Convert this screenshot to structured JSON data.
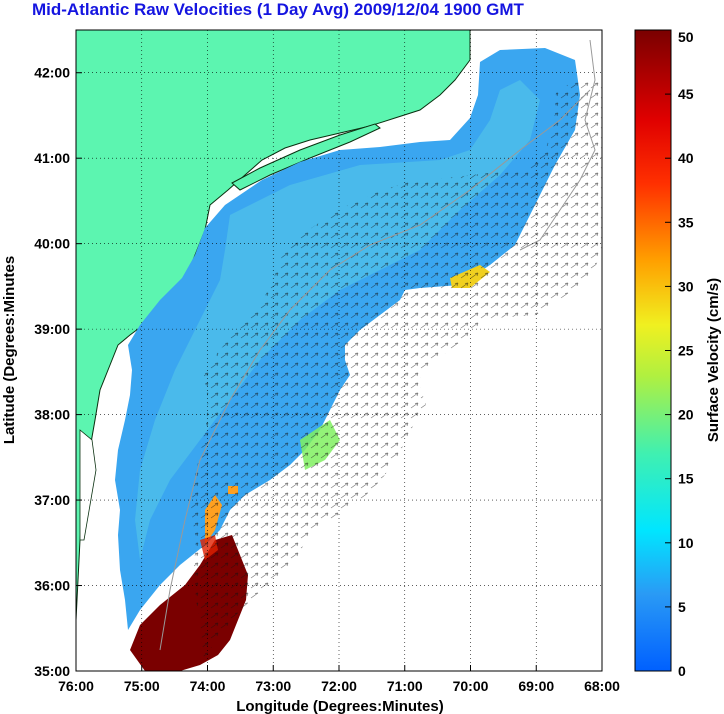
{
  "title": "Mid-Atlantic Raw Velocities (1 Day Avg) 2009/12/04 1900 GMT",
  "x_axis": {
    "label": "Longitude (Degrees:Minutes)",
    "ticks": [
      {
        "value": -76,
        "label": "76:00"
      },
      {
        "value": -75,
        "label": "75:00"
      },
      {
        "value": -74,
        "label": "74:00"
      },
      {
        "value": -73,
        "label": "73:00"
      },
      {
        "value": -72,
        "label": "72:00"
      },
      {
        "value": -71,
        "label": "71:00"
      },
      {
        "value": -70,
        "label": "70:00"
      },
      {
        "value": -69,
        "label": "69:00"
      },
      {
        "value": -68,
        "label": "68:00"
      }
    ],
    "range": [
      -76,
      -68
    ]
  },
  "y_axis": {
    "label": "Latitude (Degrees:Minutes",
    "ticks": [
      {
        "value": 35,
        "label": "35:00"
      },
      {
        "value": 36,
        "label": "36:00"
      },
      {
        "value": 37,
        "label": "37:00"
      },
      {
        "value": 38,
        "label": "38:00"
      },
      {
        "value": 39,
        "label": "39:00"
      },
      {
        "value": 40,
        "label": "40:00"
      },
      {
        "value": 41,
        "label": "41:00"
      },
      {
        "value": 42,
        "label": "42:00"
      }
    ],
    "range": [
      35,
      42.5
    ]
  },
  "colorbar": {
    "label": "Surface Velocity (cm/s)",
    "min": 0,
    "max": 50,
    "ticks": [
      {
        "value": 0,
        "label": "0"
      },
      {
        "value": 5,
        "label": "5"
      },
      {
        "value": 10,
        "label": "10"
      },
      {
        "value": 15,
        "label": "15"
      },
      {
        "value": 20,
        "label": "20"
      },
      {
        "value": 25,
        "label": "25"
      },
      {
        "value": 30,
        "label": "30"
      },
      {
        "value": 35,
        "label": "35"
      },
      {
        "value": 40,
        "label": "40"
      },
      {
        "value": 45,
        "label": "45"
      },
      {
        "value": 50,
        "label": "50"
      }
    ]
  },
  "colors": {
    "land": "#5cf5b0",
    "velocity_field": "#3aa6f0",
    "gulf_stream": "#7a0000",
    "title": "#1515e0",
    "grid": "#000000"
  }
}
